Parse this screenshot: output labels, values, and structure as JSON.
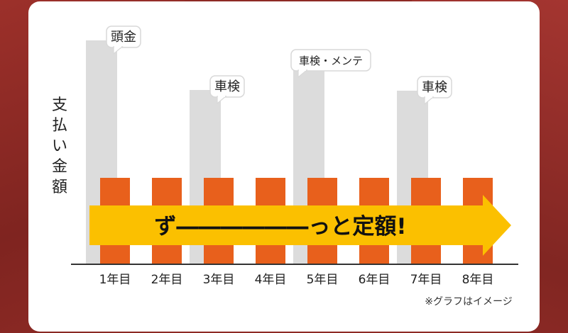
{
  "chart_data": {
    "type": "bar",
    "title": "",
    "ylabel": "支払い金額",
    "xlabel": "",
    "categories": [
      "1年目",
      "2年目",
      "3年目",
      "4年目",
      "5年目",
      "6年目",
      "7年目",
      "8年目"
    ],
    "series": [
      {
        "name": "",
        "values": [
          315,
          0,
          245,
          0,
          282,
          0,
          244,
          0
        ],
        "color": "#dcdcdc"
      },
      {
        "name": "",
        "values": [
          121,
          121,
          121,
          121,
          121,
          121,
          121,
          121
        ],
        "color": "#e8601c"
      }
    ],
    "ylim": [
      0,
      330
    ],
    "grid": false,
    "annotations": [
      {
        "category": "1年目",
        "text": "頭金"
      },
      {
        "category": "3年目",
        "text": "車検"
      },
      {
        "category": "5年目",
        "text": "車検・メンテ"
      },
      {
        "category": "7年目",
        "text": "車検"
      }
    ],
    "banner_text": "ず――――――っと定額!",
    "note": "※グラフはイメージ"
  },
  "colors": {
    "background": "#8e2a25",
    "card": "#ffffff",
    "bar_gray": "#dcdcdc",
    "bar_orange": "#e8601c",
    "arrow": "#fbc000",
    "text": "#222222"
  }
}
